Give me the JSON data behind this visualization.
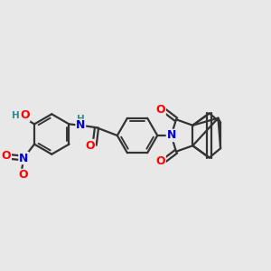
{
  "background_color": "#e8e8e8",
  "bond_color": "#333333",
  "bond_width": 1.6,
  "atom_colors": {
    "O": "#ff0000",
    "N": "#0000cc",
    "H_teal": "#2e8b8b",
    "C": "#333333"
  },
  "font_size": 9.0,
  "font_size_H": 7.5,
  "xlim": [
    0,
    10
  ],
  "ylim": [
    0,
    10
  ],
  "figsize": [
    3.0,
    3.0
  ],
  "dpi": 100
}
